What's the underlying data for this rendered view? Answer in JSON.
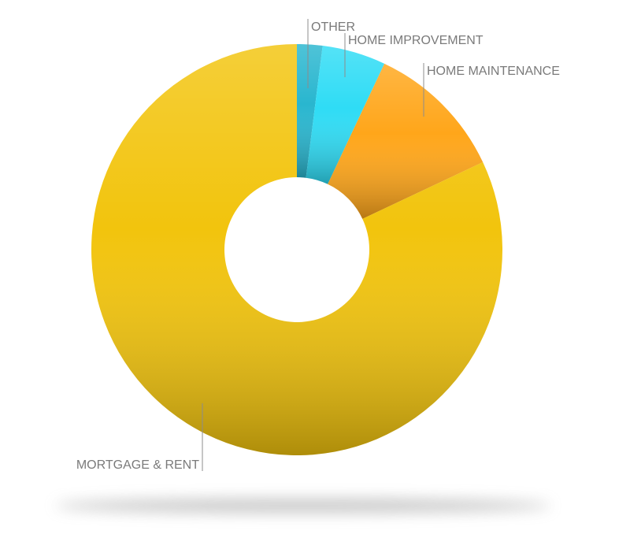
{
  "chart_data": {
    "type": "pie",
    "variant": "donut",
    "slices": [
      {
        "label": "OTHER",
        "value": 2,
        "color": "#29b6cf"
      },
      {
        "label": "HOME IMPROVEMENT",
        "value": 5,
        "color": "#2fdcf5"
      },
      {
        "label": "HOME MAINTENANCE",
        "value": 11,
        "color": "#ffa61a"
      },
      {
        "label": "MORTGAGE & RENT",
        "value": 82,
        "color": "#f2c40d"
      }
    ],
    "start_angle_deg": 0,
    "direction": "clockwise",
    "label_style": "leader lines",
    "legend": "none",
    "background": "#ffffff"
  }
}
